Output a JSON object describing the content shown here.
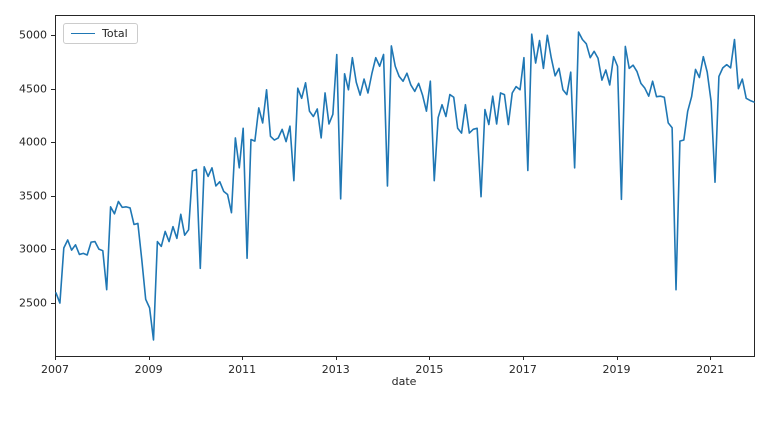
{
  "chart_data": {
    "type": "line",
    "title": "",
    "xlabel": "date",
    "ylabel": "",
    "grid": false,
    "legend_position": "upper left",
    "line_color": "#1f77b4",
    "axis_color": "#262626",
    "x_start": "2007-01",
    "x_end": "2021-12",
    "frequency": "monthly",
    "x_tick_labels": [
      "2007",
      "2009",
      "2011",
      "2013",
      "2015",
      "2017",
      "2019",
      "2021"
    ],
    "x_tick_month_index": [
      0,
      24,
      48,
      72,
      96,
      120,
      144,
      168
    ],
    "y_ticks": [
      2500,
      3000,
      3500,
      4000,
      4500,
      5000
    ],
    "ylim": [
      2010,
      5190
    ],
    "series": [
      {
        "name": "Total",
        "values": [
          2600,
          2505,
          3020,
          3095,
          3000,
          3050,
          2960,
          2970,
          2955,
          3075,
          3080,
          3010,
          2995,
          2630,
          3405,
          3340,
          3455,
          3400,
          3405,
          3395,
          3240,
          3250,
          2910,
          2540,
          2460,
          2160,
          3080,
          3035,
          3175,
          3080,
          3220,
          3110,
          3335,
          3140,
          3190,
          3740,
          3755,
          2830,
          3780,
          3690,
          3770,
          3600,
          3640,
          3550,
          3520,
          3350,
          4050,
          3770,
          4140,
          2925,
          4035,
          4020,
          4330,
          4190,
          4500,
          4065,
          4030,
          4050,
          4130,
          4015,
          4160,
          3650,
          4515,
          4420,
          4565,
          4300,
          4250,
          4320,
          4050,
          4470,
          4180,
          4270,
          4830,
          3480,
          4650,
          4500,
          4800,
          4570,
          4450,
          4600,
          4470,
          4650,
          4800,
          4720,
          4830,
          3600,
          4910,
          4720,
          4625,
          4580,
          4655,
          4545,
          4485,
          4560,
          4450,
          4300,
          4580,
          3650,
          4240,
          4360,
          4250,
          4455,
          4430,
          4140,
          4095,
          4360,
          4095,
          4130,
          4140,
          3500,
          4315,
          4175,
          4440,
          4180,
          4470,
          4455,
          4175,
          4470,
          4530,
          4500,
          4800,
          3745,
          5020,
          4750,
          4960,
          4700,
          5010,
          4800,
          4630,
          4700,
          4500,
          4455,
          4665,
          3770,
          5040,
          4970,
          4930,
          4800,
          4860,
          4795,
          4590,
          4685,
          4545,
          4810,
          4720,
          3475,
          4905,
          4700,
          4730,
          4670,
          4560,
          4515,
          4440,
          4580,
          4435,
          4440,
          4430,
          4190,
          4145,
          2630,
          4020,
          4030,
          4300,
          4435,
          4690,
          4615,
          4810,
          4665,
          4390,
          3635,
          4625,
          4705,
          4735,
          4705,
          4970,
          4510,
          4600,
          4420,
          4400,
          4385
        ]
      }
    ]
  }
}
